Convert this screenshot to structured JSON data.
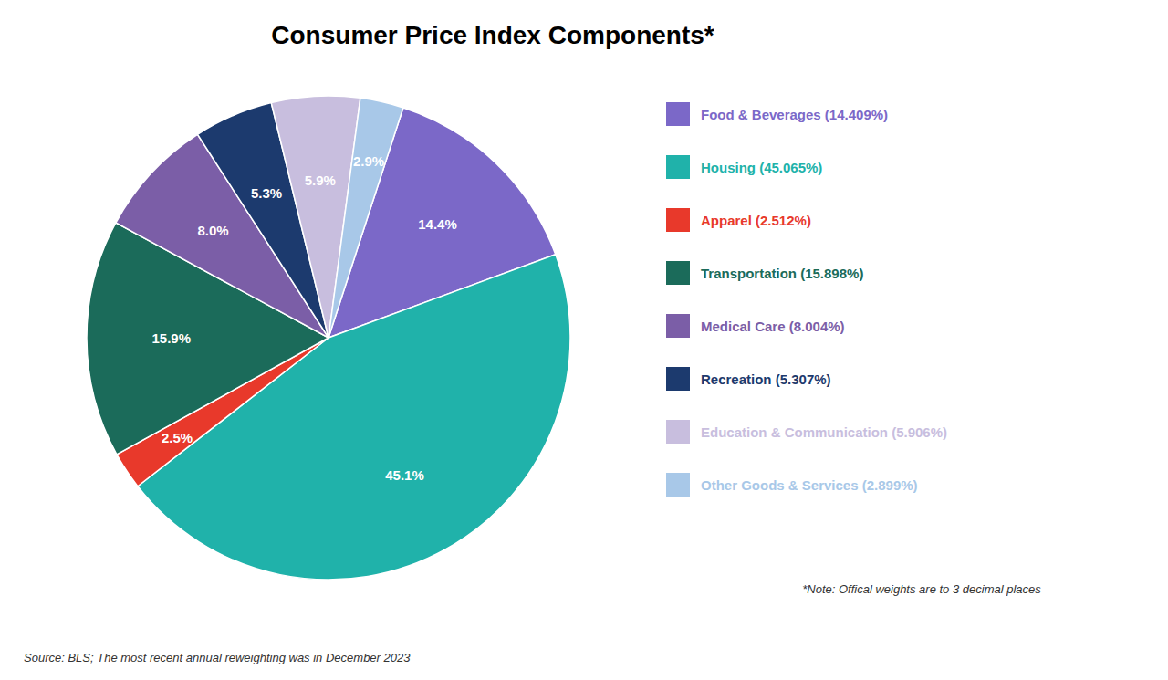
{
  "chart_data": {
    "type": "pie",
    "title": "Consumer Price Index Components*",
    "categories": [
      "Food & Beverages (14.409%)",
      "Housing (45.065%)",
      "Apparel (2.512%)",
      "Transportation (15.898%)",
      "Medical Care (8.004%)",
      "Recreation (5.307%)",
      "Education & Communication (5.906%)",
      "Other Goods & Services (2.899%)"
    ],
    "values": [
      14.409,
      45.065,
      2.512,
      15.898,
      8.004,
      5.307,
      5.906,
      2.899
    ],
    "value_labels": [
      "14.4%",
      "45.1%",
      "2.5%",
      "15.9%",
      "8.0%",
      "5.3%",
      "5.9%",
      "2.9%"
    ],
    "data_labels": true,
    "colors": [
      "#7B68C8",
      "#20B2AA",
      "#E8392B",
      "#1B6B5A",
      "#7B5EA7",
      "#1C3A6E",
      "#C8BEDE",
      "#A8C8E8"
    ],
    "legend": "right",
    "annotations": [
      "*Note: Offical weights are to 3 decimal places",
      "Source: BLS; The most recent annual reweighting was in December 2023"
    ]
  }
}
